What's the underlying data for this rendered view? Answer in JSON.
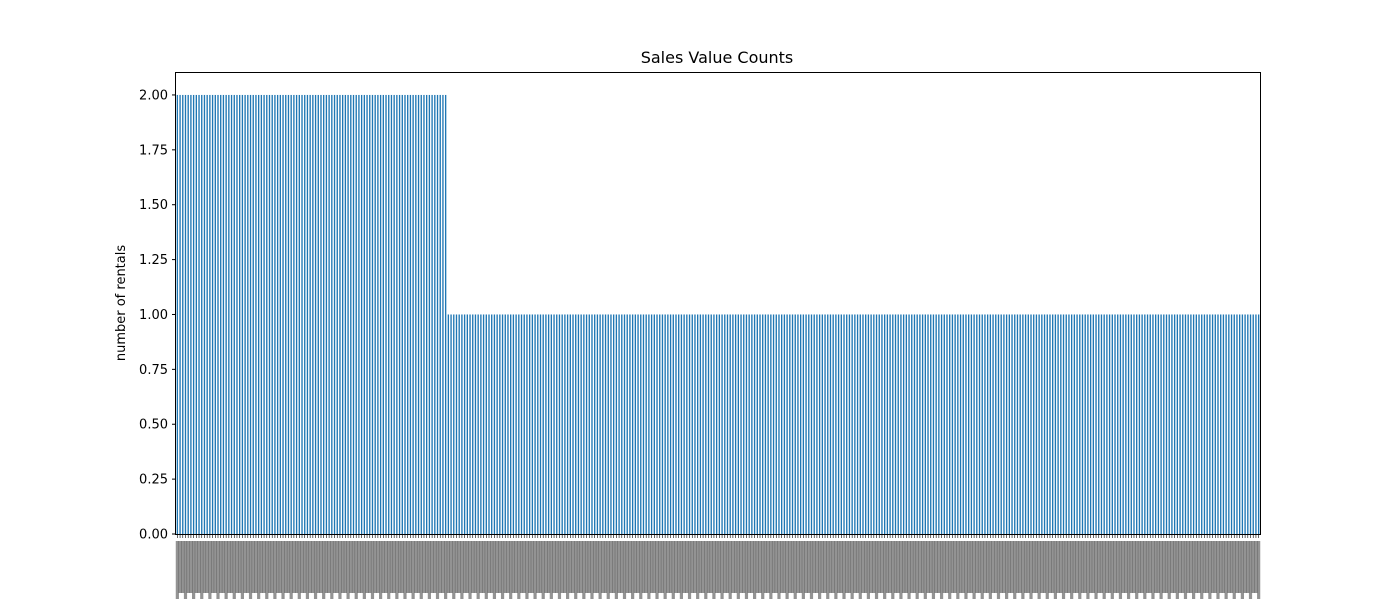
{
  "chart_data": {
    "type": "bar",
    "title": "Sales Value Counts",
    "xlabel": "",
    "ylabel": "number of rentals",
    "ylim": [
      0,
      2.1
    ],
    "yticks": [
      "0.00",
      "0.25",
      "0.50",
      "0.75",
      "1.00",
      "1.25",
      "1.50",
      "1.75",
      "2.00"
    ],
    "grid": false,
    "legend": "none",
    "bar_color": "#1f77b4",
    "series": [
      {
        "segments": [
          {
            "count": 100,
            "value": 2
          },
          {
            "count": 300,
            "value": 1
          }
        ]
      }
    ]
  }
}
